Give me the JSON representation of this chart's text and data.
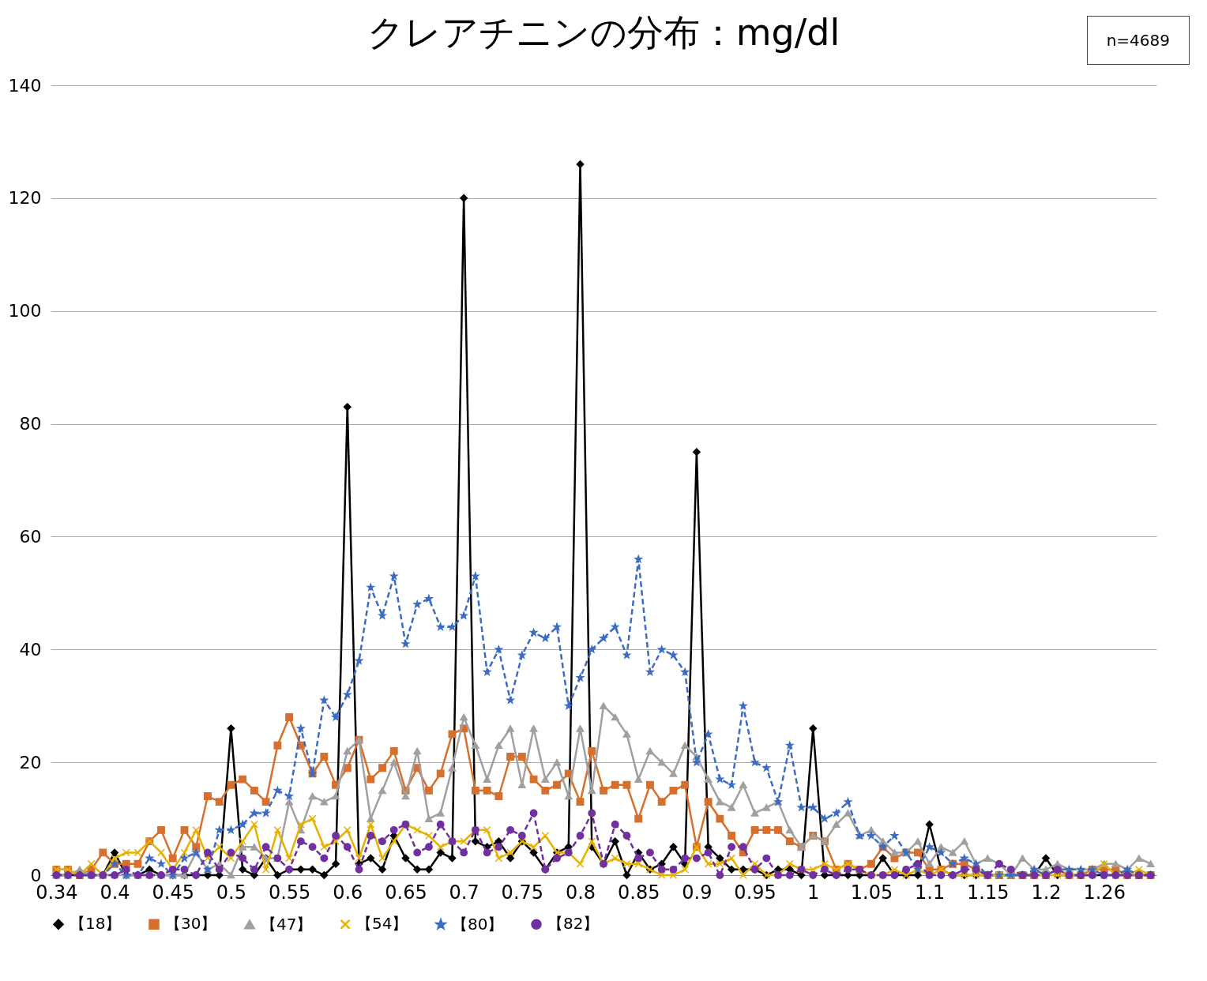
{
  "chart_data": {
    "type": "line",
    "title": "クレアチニンの分布：mg/dl",
    "annotations": [
      "n=4689"
    ],
    "categories": [
      "0.34",
      null,
      null,
      null,
      null,
      "0.4",
      null,
      null,
      null,
      null,
      "0.45",
      null,
      null,
      null,
      null,
      "0.5",
      null,
      null,
      null,
      null,
      "0.55",
      null,
      null,
      null,
      null,
      "0.6",
      null,
      null,
      null,
      null,
      "0.65",
      null,
      null,
      null,
      null,
      "0.7",
      null,
      null,
      null,
      null,
      "0.75",
      null,
      null,
      null,
      null,
      "0.8",
      null,
      null,
      null,
      null,
      "0.85",
      null,
      null,
      null,
      null,
      "0.9",
      null,
      null,
      null,
      null,
      "0.95",
      null,
      null,
      null,
      null,
      "1",
      null,
      null,
      null,
      null,
      "1.05",
      null,
      null,
      null,
      null,
      "1.1",
      null,
      null,
      null,
      null,
      "1.15",
      null,
      null,
      null,
      null,
      "1.2",
      null,
      null,
      null,
      null,
      "1.26",
      null,
      null,
      null,
      null
    ],
    "ylim": [
      0,
      140
    ],
    "yticks": [
      0,
      20,
      40,
      60,
      80,
      100,
      120,
      140
    ],
    "grid": "y",
    "legend": "bottom",
    "series": [
      {
        "name": "【18】",
        "color": "#000000",
        "marker": "diamond",
        "line_style": "solid",
        "values": [
          0,
          0,
          0,
          0,
          0,
          4,
          0,
          0,
          1,
          0,
          0,
          0,
          0,
          0,
          0,
          26,
          1,
          0,
          3,
          0,
          1,
          1,
          1,
          0,
          2,
          83,
          2,
          3,
          1,
          7,
          3,
          1,
          1,
          4,
          3,
          120,
          6,
          5,
          6,
          3,
          6,
          4,
          1,
          4,
          5,
          126,
          5,
          2,
          6,
          0,
          4,
          1,
          2,
          5,
          2,
          75,
          5,
          3,
          1,
          1,
          1,
          0,
          1,
          1,
          0,
          26,
          0,
          0,
          0,
          0,
          0,
          3,
          0,
          0,
          0,
          9,
          1,
          0,
          0,
          0,
          0,
          0,
          0,
          0,
          0,
          3,
          0,
          0,
          0,
          0,
          0,
          0,
          0,
          0,
          0
        ]
      },
      {
        "name": "【30】",
        "color": "#d5702f",
        "marker": "square",
        "line_style": "solid",
        "values": [
          1,
          1,
          0,
          1,
          4,
          2,
          2,
          2,
          6,
          8,
          3,
          8,
          5,
          14,
          13,
          16,
          17,
          15,
          13,
          23,
          28,
          23,
          18,
          21,
          16,
          19,
          24,
          17,
          19,
          22,
          15,
          19,
          15,
          18,
          25,
          26,
          15,
          15,
          14,
          21,
          21,
          17,
          15,
          16,
          18,
          13,
          22,
          15,
          16,
          16,
          10,
          16,
          13,
          15,
          16,
          5,
          13,
          10,
          7,
          4,
          8,
          8,
          8,
          6,
          5,
          7,
          6,
          1,
          2,
          1,
          2,
          5,
          3,
          4,
          4,
          1,
          1,
          2,
          2,
          1,
          0,
          0,
          0,
          0,
          0,
          0,
          1,
          0,
          0,
          1,
          1,
          1,
          0,
          0,
          0
        ]
      },
      {
        "name": "【47】",
        "color": "#a0a0a0",
        "marker": "triangle",
        "line_style": "solid",
        "values": [
          0,
          0,
          1,
          0,
          0,
          0,
          0,
          0,
          0,
          0,
          0,
          0,
          4,
          1,
          2,
          0,
          5,
          5,
          3,
          3,
          13,
          8,
          14,
          13,
          14,
          22,
          24,
          10,
          15,
          20,
          14,
          22,
          10,
          11,
          19,
          28,
          23,
          17,
          23,
          26,
          16,
          26,
          17,
          20,
          14,
          26,
          15,
          30,
          28,
          25,
          17,
          22,
          20,
          18,
          23,
          21,
          17,
          13,
          12,
          16,
          11,
          12,
          13,
          8,
          5,
          7,
          6,
          9,
          11,
          7,
          8,
          6,
          4,
          4,
          6,
          2,
          5,
          4,
          6,
          2,
          3,
          2,
          0,
          3,
          1,
          1,
          2,
          1,
          1,
          1,
          2,
          2,
          1,
          3,
          2
        ]
      },
      {
        "name": "【54】",
        "color": "#e8b000",
        "marker": "cross",
        "line_style": "solid",
        "values": [
          1,
          1,
          0,
          2,
          0,
          3,
          4,
          4,
          6,
          4,
          1,
          4,
          8,
          3,
          5,
          3,
          6,
          9,
          1,
          8,
          3,
          9,
          10,
          5,
          6,
          8,
          3,
          9,
          3,
          6,
          9,
          8,
          7,
          5,
          6,
          6,
          8,
          8,
          3,
          4,
          6,
          5,
          7,
          4,
          4,
          2,
          6,
          2,
          3,
          2,
          2,
          1,
          0,
          0,
          1,
          5,
          2,
          2,
          3,
          0,
          2,
          0,
          0,
          2,
          1,
          1,
          2,
          1,
          2,
          1,
          0,
          0,
          1,
          0,
          1,
          0,
          1,
          0,
          0,
          0,
          0,
          0,
          0,
          0,
          0,
          0,
          0,
          0,
          0,
          0,
          2,
          0,
          0,
          1,
          0
        ]
      },
      {
        "name": "【80】",
        "color": "#3d6cc0",
        "marker": "star",
        "line_style": "dashed",
        "values": [
          0,
          0,
          0,
          0,
          0,
          2,
          0,
          0,
          3,
          2,
          0,
          3,
          4,
          1,
          8,
          8,
          9,
          11,
          11,
          15,
          14,
          26,
          18,
          31,
          28,
          32,
          38,
          51,
          46,
          53,
          41,
          48,
          49,
          44,
          44,
          46,
          53,
          36,
          40,
          31,
          39,
          43,
          42,
          44,
          30,
          35,
          40,
          42,
          44,
          39,
          56,
          36,
          40,
          39,
          36,
          20,
          25,
          17,
          16,
          30,
          20,
          19,
          13,
          23,
          12,
          12,
          10,
          11,
          13,
          7,
          7,
          5,
          7,
          4,
          1,
          5,
          4,
          2,
          3,
          2,
          0,
          0,
          0,
          0,
          1,
          0,
          1,
          1,
          1,
          1,
          0,
          0,
          1,
          0,
          0
        ]
      },
      {
        "name": "【82】",
        "color": "#7030a0",
        "marker": "circle",
        "line_style": "dashed",
        "values": [
          0,
          0,
          0,
          0,
          0,
          0,
          1,
          0,
          0,
          0,
          1,
          1,
          0,
          4,
          1,
          4,
          3,
          1,
          5,
          3,
          1,
          6,
          5,
          3,
          7,
          5,
          1,
          7,
          6,
          8,
          9,
          4,
          5,
          9,
          6,
          4,
          8,
          4,
          5,
          8,
          7,
          11,
          1,
          3,
          4,
          7,
          11,
          2,
          9,
          7,
          3,
          4,
          1,
          1,
          3,
          3,
          4,
          0,
          5,
          5,
          1,
          3,
          0,
          0,
          1,
          0,
          1,
          0,
          1,
          1,
          0,
          0,
          0,
          1,
          2,
          0,
          0,
          0,
          1,
          1,
          0,
          2,
          1,
          0,
          0,
          0,
          1,
          0,
          0,
          0,
          0,
          0,
          0,
          0,
          0
        ]
      }
    ]
  }
}
